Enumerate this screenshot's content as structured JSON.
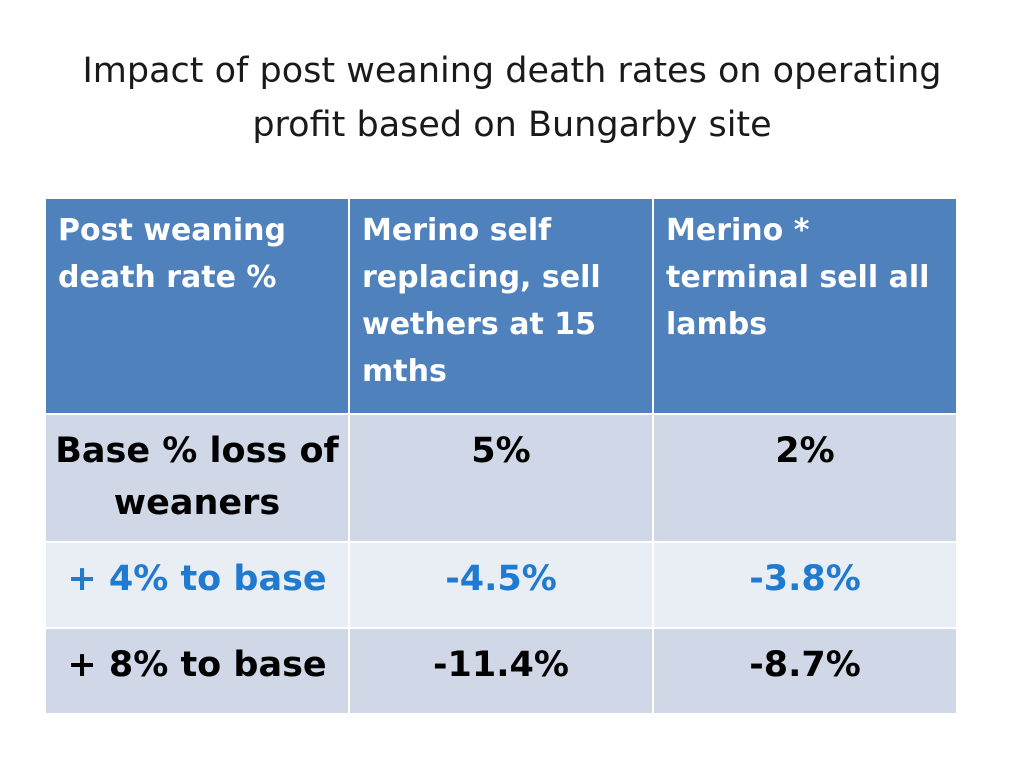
{
  "title": "Impact of post weaning death rates on operating profit based on Bungarby site",
  "table": {
    "headers": [
      "Post weaning death rate %",
      "Merino self replacing, sell wethers at 15 mths",
      "Merino * terminal sell all lambs"
    ],
    "rows": [
      {
        "label": "Base % loss of weaners",
        "values": [
          "5%",
          "2%"
        ]
      },
      {
        "label": "+ 4% to base",
        "values": [
          "-4.5%",
          "-3.8%"
        ]
      },
      {
        "label": "+ 8% to base",
        "values": [
          "-11.4%",
          "-8.7%"
        ]
      }
    ],
    "highlight_color": "#1f7ad0",
    "header_color": "#4f81bd"
  }
}
